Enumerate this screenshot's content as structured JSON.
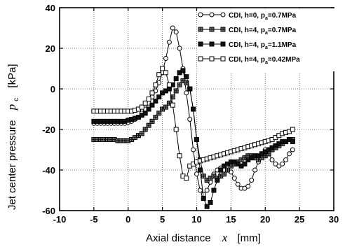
{
  "chart_data": {
    "type": "line",
    "title": "",
    "xlabel": "Axial distance",
    "xlabel_var": "x",
    "xlabel_unit": "[mm]",
    "ylabel": "Jet center pressure",
    "ylabel_var": "p",
    "ylabel_sub": "c",
    "ylabel_unit": "[kPa]",
    "xlim": [
      -10,
      30
    ],
    "ylim": [
      -60,
      40
    ],
    "xticks": [
      -10,
      -5,
      0,
      5,
      10,
      15,
      20,
      25,
      30
    ],
    "yticks": [
      -60,
      -40,
      -20,
      0,
      20,
      40
    ],
    "xtick_labels": [
      "-10",
      "-5",
      "0",
      "5",
      "10",
      "15",
      "20",
      "25",
      "30"
    ],
    "ytick_labels": [
      "-60",
      "-40",
      "-20",
      "0",
      "20",
      "40"
    ],
    "grid": true,
    "legend_position": "top-right",
    "series": [
      {
        "name": "CDI, h=0, p",
        "name_sub": "a",
        "name_tail": "=0.7MPa",
        "marker": "circle-open",
        "x": [
          -5,
          -4.5,
          -4,
          -3.5,
          -3,
          -2.5,
          -2,
          -1.5,
          -1,
          -0.5,
          0,
          0.5,
          1,
          1.5,
          2,
          2.5,
          3,
          3.5,
          4,
          4.5,
          5,
          5.5,
          6,
          6.5,
          7,
          7.5,
          8,
          8.5,
          9,
          9.5,
          10,
          10.5,
          11,
          11.5,
          12,
          12.5,
          13,
          13.5,
          14,
          14.5,
          15,
          15.5,
          16,
          16.5,
          17,
          17.5,
          18,
          18.5,
          19,
          19.5,
          20,
          20.5,
          21,
          21.5,
          22,
          22.5,
          23,
          23.5,
          24
        ],
        "y": [
          -17,
          -17,
          -17,
          -17,
          -17,
          -17,
          -17,
          -17,
          -17,
          -17,
          -16.5,
          -16,
          -15,
          -14,
          -12,
          -10,
          -7,
          -4,
          -1,
          3,
          8,
          15,
          23,
          30,
          28,
          20,
          10,
          -2,
          -15,
          -30,
          -42,
          -50,
          -52,
          -50,
          -46,
          -42,
          -40,
          -39,
          -38,
          -39,
          -41,
          -44,
          -47,
          -49,
          -49,
          -48,
          -45,
          -40,
          -36,
          -32,
          -30,
          -32,
          -35,
          -37,
          -38,
          -37,
          -35,
          -32,
          -30
        ]
      },
      {
        "name": "CDI, h=4, p",
        "name_sub": "a",
        "name_tail": "=0.7MPa",
        "marker": "square-cross",
        "x": [
          -5,
          -4.5,
          -4,
          -3.5,
          -3,
          -2.5,
          -2,
          -1.5,
          -1,
          -0.5,
          0,
          0.5,
          1,
          1.5,
          2,
          2.5,
          3,
          3.5,
          4,
          4.5,
          5,
          5.5,
          6,
          6.5,
          7,
          7.5,
          8,
          8.5,
          9,
          9.5,
          10,
          10.5,
          11,
          11.5,
          12,
          12.5,
          13,
          13.5,
          14,
          14.5,
          15,
          15.5,
          16,
          16.5,
          17,
          17.5,
          18,
          18.5,
          19,
          19.5,
          20,
          20.5,
          21,
          21.5,
          22,
          22.5,
          23,
          23.5,
          24
        ],
        "y": [
          -25,
          -25,
          -25,
          -25,
          -25,
          -25,
          -25,
          -25.5,
          -25.5,
          -25.5,
          -25.5,
          -25,
          -24,
          -23,
          -22,
          -20,
          -18,
          -16,
          -14,
          -12,
          -10,
          -9,
          -7,
          -4,
          -1,
          2,
          4,
          3,
          0,
          -10,
          -25,
          -35,
          -43,
          -45,
          -44,
          -43,
          -44,
          -43,
          -42,
          -40,
          -38,
          -37,
          -36,
          -35,
          -34,
          -33,
          -33,
          -34,
          -35,
          -34,
          -33,
          -32,
          -30,
          -29,
          -28,
          -27,
          -26,
          -25,
          -25
        ]
      },
      {
        "name": "CDI, h=4, p",
        "name_sub": "a",
        "name_tail": "=1.1MPa",
        "marker": "square-filled",
        "x": [
          -5,
          -4.5,
          -4,
          -3.5,
          -3,
          -2.5,
          -2,
          -1.5,
          -1,
          -0.5,
          0,
          0.5,
          1,
          1.5,
          2,
          2.5,
          3,
          3.5,
          4,
          4.5,
          5,
          5.5,
          6,
          6.5,
          7,
          7.5,
          8,
          8.5,
          9,
          9.5,
          10,
          10.5,
          11,
          11.5,
          12,
          12.5,
          13,
          13.5,
          14,
          14.5,
          15,
          15.5,
          16,
          16.5,
          17,
          17.5,
          18,
          18.5,
          19,
          19.5,
          20,
          20.5,
          21,
          21.5,
          22,
          22.5,
          23,
          23.5,
          24
        ],
        "y": [
          -16,
          -16,
          -16,
          -16,
          -16,
          -16,
          -16,
          -16,
          -16,
          -16,
          -15.5,
          -15,
          -14.5,
          -14,
          -13,
          -12,
          -10,
          -8,
          -6,
          -4,
          -2,
          -1,
          0,
          2,
          5,
          8,
          9,
          6,
          0,
          -10,
          -25,
          -40,
          -54,
          -58,
          -56,
          -50,
          -45,
          -40,
          -38,
          -37,
          -36,
          -36,
          -37,
          -38,
          -37,
          -35,
          -34,
          -33,
          -33,
          -32,
          -31,
          -30,
          -29,
          -28,
          -27,
          -26,
          -26,
          -25,
          -26
        ]
      },
      {
        "name": "CDI, h=4, p",
        "name_sub": "a",
        "name_tail": "=0.42MPa",
        "marker": "square-open",
        "x": [
          -5,
          -4.5,
          -4,
          -3.5,
          -3,
          -2.5,
          -2,
          -1.5,
          -1,
          -0.5,
          0,
          0.5,
          1,
          1.5,
          2,
          2.5,
          3,
          3.5,
          4,
          4.5,
          5,
          5.5,
          6,
          6.5,
          7,
          7.5,
          8,
          8.5,
          9,
          9.5,
          10,
          10.5,
          11,
          11.5,
          12,
          12.5,
          13,
          13.5,
          14,
          14.5,
          15,
          15.5,
          16,
          16.5,
          17,
          17.5,
          18,
          18.5,
          19,
          19.5,
          20,
          20.5,
          21,
          21.5,
          22,
          22.5,
          23,
          23.5,
          24
        ],
        "y": [
          -11,
          -11,
          -11,
          -11,
          -11,
          -11,
          -11,
          -11,
          -11,
          -11,
          -11,
          -11,
          -10.5,
          -10,
          -9,
          -7,
          -5,
          -2,
          2,
          7,
          10,
          8,
          2,
          -8,
          -20,
          -33,
          -43,
          -44,
          -38,
          -37,
          -36,
          -35.5,
          -35,
          -34.5,
          -34,
          -33.5,
          -33,
          -32.5,
          -32,
          -31.5,
          -31,
          -30.5,
          -30,
          -29.5,
          -29,
          -28.5,
          -28,
          -27.5,
          -27,
          -26.5,
          -26,
          -25.5,
          -25,
          -24,
          -23,
          -22,
          -21.5,
          -21,
          -20
        ]
      }
    ]
  }
}
